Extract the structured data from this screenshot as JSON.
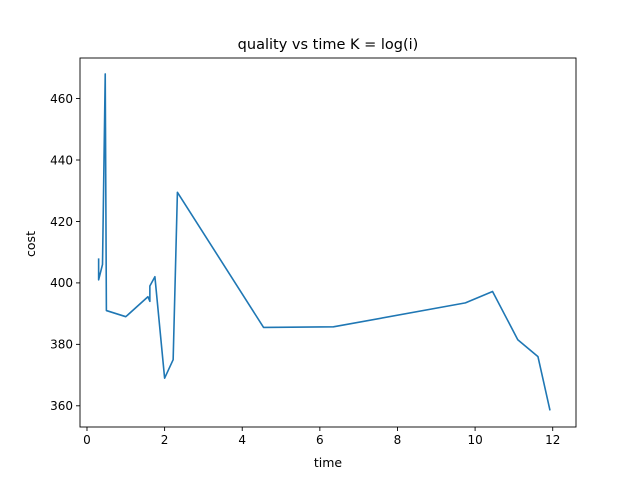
{
  "chart_data": {
    "type": "line",
    "title": "quality vs time K = log(i)",
    "xlabel": "time",
    "ylabel": "cost",
    "xlim": [
      -0.18,
      12.6
    ],
    "ylim": [
      353.1,
      473.2
    ],
    "xticks": [
      0,
      2,
      4,
      6,
      8,
      10,
      12
    ],
    "yticks": [
      360,
      380,
      400,
      420,
      440,
      460
    ],
    "grid": false,
    "legend": "none",
    "series": [
      {
        "color": "#1f77b4",
        "points": [
          [
            0.3,
            408.0
          ],
          [
            0.3,
            401.0
          ],
          [
            0.4,
            406.0
          ],
          [
            0.47,
            468.0
          ],
          [
            0.5,
            391.0
          ],
          [
            1.0,
            389.0
          ],
          [
            1.57,
            395.5
          ],
          [
            1.62,
            394.0
          ],
          [
            1.62,
            399.0
          ],
          [
            1.75,
            402.0
          ],
          [
            2.0,
            369.0
          ],
          [
            2.22,
            375.0
          ],
          [
            2.33,
            429.5
          ],
          [
            4.55,
            385.5
          ],
          [
            6.35,
            385.7
          ],
          [
            9.75,
            393.5
          ],
          [
            10.45,
            397.2
          ],
          [
            11.1,
            381.5
          ],
          [
            11.62,
            376.0
          ],
          [
            11.93,
            358.5
          ]
        ]
      }
    ]
  }
}
